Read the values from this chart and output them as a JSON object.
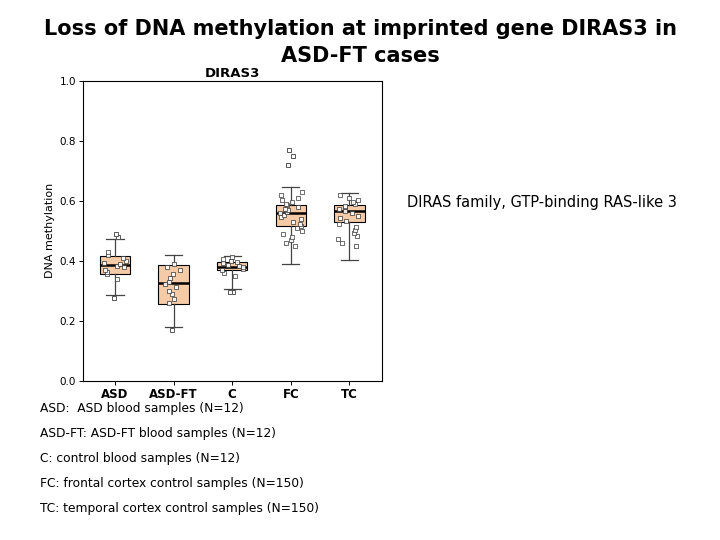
{
  "title_line1": "Loss of DNA methylation at imprinted gene DIRAS3 in",
  "title_line2": "ASD-FT cases",
  "plot_title": "DIRAS3",
  "ylabel": "DNA methylation",
  "categories": [
    "ASD",
    "ASD-FT",
    "C",
    "FC",
    "TC"
  ],
  "annotation": "DIRAS family, GTP-binding RAS-like 3",
  "legend_text": [
    "ASD:  ASD blood samples (N=12)",
    "ASD-FT: ASD-FT blood samples (N=12)",
    "C: control blood samples (N=12)",
    "FC: frontal cortex control samples (N=150)",
    "TC: temporal cortex control samples (N=150)"
  ],
  "ylim": [
    0.0,
    1.0
  ],
  "yticks": [
    0.0,
    0.2,
    0.4,
    0.6,
    0.8,
    1.0
  ],
  "box_color": "#F5CBA7",
  "box_data": {
    "ASD": {
      "q1": 0.355,
      "median": 0.385,
      "q3": 0.415,
      "whislo": 0.285,
      "whishi": 0.472,
      "fliers": [
        0.275,
        0.48,
        0.49
      ]
    },
    "ASD-FT": {
      "q1": 0.255,
      "median": 0.325,
      "q3": 0.385,
      "whislo": 0.178,
      "whishi": 0.42,
      "fliers": [
        0.17
      ]
    },
    "C": {
      "q1": 0.368,
      "median": 0.38,
      "q3": 0.395,
      "whislo": 0.305,
      "whishi": 0.415,
      "fliers": [
        0.295,
        0.295
      ]
    },
    "FC": {
      "q1": 0.515,
      "median": 0.558,
      "q3": 0.585,
      "whislo": 0.388,
      "whishi": 0.645,
      "fliers": [
        0.72,
        0.75,
        0.77
      ]
    },
    "TC": {
      "q1": 0.53,
      "median": 0.565,
      "q3": 0.585,
      "whislo": 0.402,
      "whishi": 0.625,
      "fliers": []
    }
  },
  "jitter_ASD": [
    0.34,
    0.355,
    0.362,
    0.37,
    0.378,
    0.383,
    0.388,
    0.393,
    0.4,
    0.408,
    0.418,
    0.43
  ],
  "jitter_ASDFT": [
    0.258,
    0.272,
    0.288,
    0.3,
    0.312,
    0.322,
    0.33,
    0.342,
    0.355,
    0.368,
    0.378,
    0.39
  ],
  "jitter_C": [
    0.35,
    0.36,
    0.368,
    0.373,
    0.378,
    0.382,
    0.386,
    0.392,
    0.396,
    0.4,
    0.406,
    0.413
  ],
  "jitter_FC": [
    0.448,
    0.458,
    0.468,
    0.478,
    0.488,
    0.498,
    0.508,
    0.515,
    0.522,
    0.53,
    0.538,
    0.545,
    0.552,
    0.558,
    0.563,
    0.568,
    0.574,
    0.58,
    0.585,
    0.59,
    0.596,
    0.602,
    0.61,
    0.618,
    0.628
  ],
  "jitter_TC": [
    0.448,
    0.46,
    0.472,
    0.482,
    0.492,
    0.502,
    0.512,
    0.522,
    0.532,
    0.542,
    0.55,
    0.558,
    0.565,
    0.572,
    0.578,
    0.584,
    0.59,
    0.596,
    0.602,
    0.61,
    0.618
  ]
}
